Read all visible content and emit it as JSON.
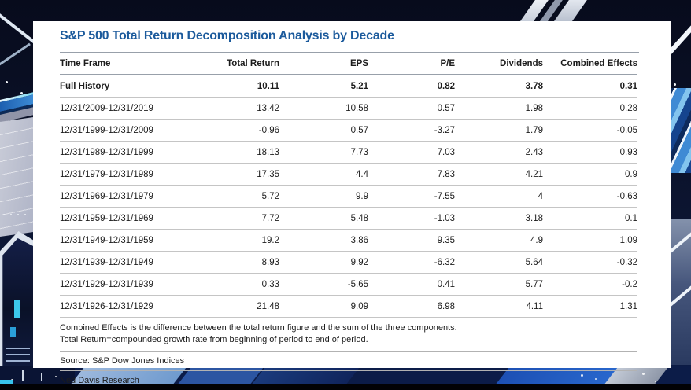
{
  "chart_data": {
    "type": "table",
    "title": "S&P 500 Total Return Decomposition Analysis by Decade",
    "columns": [
      "Time Frame",
      "Total Return",
      "EPS",
      "P/E",
      "Dividends",
      "Combined Effects"
    ],
    "rows": [
      {
        "cells": [
          "Full History",
          "10.11",
          "5.21",
          "0.82",
          "3.78",
          "0.31"
        ],
        "bold": true
      },
      {
        "cells": [
          "12/31/2009-12/31/2019",
          "13.42",
          "10.58",
          "0.57",
          "1.98",
          "0.28"
        ],
        "bold": false
      },
      {
        "cells": [
          "12/31/1999-12/31/2009",
          "-0.96",
          "0.57",
          "-3.27",
          "1.79",
          "-0.05"
        ],
        "bold": false
      },
      {
        "cells": [
          "12/31/1989-12/31/1999",
          "18.13",
          "7.73",
          "7.03",
          "2.43",
          "0.93"
        ],
        "bold": false
      },
      {
        "cells": [
          "12/31/1979-12/31/1989",
          "17.35",
          "4.4",
          "7.83",
          "4.21",
          "0.9"
        ],
        "bold": false
      },
      {
        "cells": [
          "12/31/1969-12/31/1979",
          "5.72",
          "9.9",
          "-7.55",
          "4",
          "-0.63"
        ],
        "bold": false
      },
      {
        "cells": [
          "12/31/1959-12/31/1969",
          "7.72",
          "5.48",
          "-1.03",
          "3.18",
          "0.1"
        ],
        "bold": false
      },
      {
        "cells": [
          "12/31/1949-12/31/1959",
          "19.2",
          "3.86",
          "9.35",
          "4.9",
          "1.09"
        ],
        "bold": false
      },
      {
        "cells": [
          "12/31/1939-12/31/1949",
          "8.93",
          "9.92",
          "-6.32",
          "5.64",
          "-0.32"
        ],
        "bold": false
      },
      {
        "cells": [
          "12/31/1929-12/31/1939",
          "0.33",
          "-5.65",
          "0.41",
          "5.77",
          "-0.2"
        ],
        "bold": false
      },
      {
        "cells": [
          "12/31/1926-12/31/1929",
          "21.48",
          "9.09",
          "6.98",
          "4.11",
          "1.31"
        ],
        "bold": false
      }
    ],
    "footnotes": [
      "Combined Effects is the difference between the total return figure and the sum of the three components.",
      "Total Return=compounded growth rate from beginning of period to end of period."
    ],
    "source": "Source: S&P Dow Jones Indices",
    "attribution": "Ned Davis Research"
  },
  "colors": {
    "title_blue": "#1b5a9c",
    "card_white": "#ffffff",
    "backdrop_navy": "#0a0f26",
    "stripe_blue": "#2f7fd0",
    "stripe_cyan": "#45c2ee",
    "panel_gray": "#b9bdcc"
  }
}
